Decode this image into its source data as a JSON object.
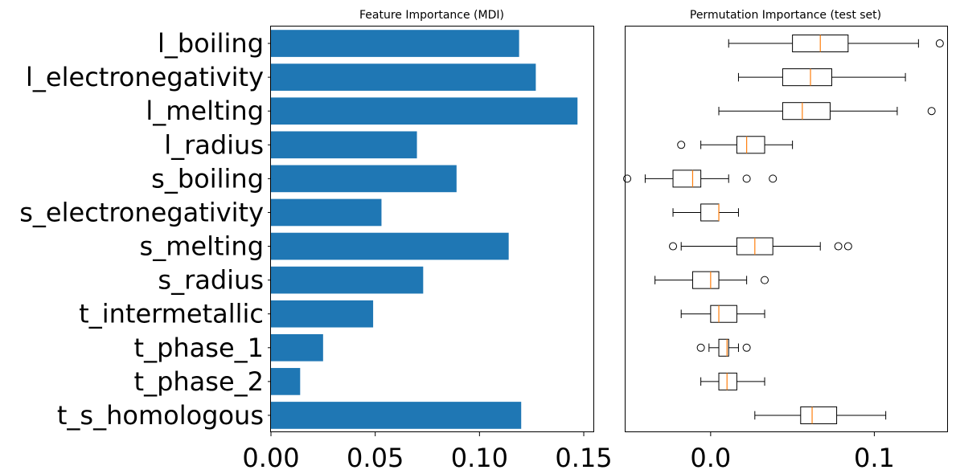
{
  "chart_data": [
    {
      "type": "bar",
      "orientation": "horizontal",
      "title": "Feature Importance (MDI)",
      "categories": [
        "l_boiling",
        "l_electronegativity",
        "l_melting",
        "l_radius",
        "s_boiling",
        "s_electronegativity",
        "s_melting",
        "s_radius",
        "t_intermetallic",
        "t_phase_1",
        "t_phase_2",
        "t_s_homologous"
      ],
      "values": [
        0.119,
        0.127,
        0.147,
        0.07,
        0.089,
        0.053,
        0.114,
        0.073,
        0.049,
        0.025,
        0.014,
        0.12
      ],
      "xlim": [
        0.0,
        0.155
      ],
      "xticks": [
        "0.00",
        "0.05",
        "0.10",
        "0.15"
      ],
      "xtick_values": [
        0.0,
        0.05,
        0.1,
        0.15
      ],
      "xlabel": "",
      "ylabel": "",
      "bar_color": "#1f77b4",
      "grid": false
    },
    {
      "type": "boxplot",
      "orientation": "horizontal",
      "title": "Permutation Importance (test set)",
      "xlim": [
        -0.052,
        0.145
      ],
      "xticks": [
        "0.0",
        "0.1"
      ],
      "xtick_values": [
        0.0,
        0.1
      ],
      "xlabel": "",
      "ylabel": "",
      "box_color": "#000000",
      "median_color": "#ff7f0e",
      "grid": false,
      "boxes": [
        {
          "whisker_low": 0.011,
          "q1": 0.05,
          "median": 0.067,
          "q3": 0.084,
          "whisker_high": 0.127,
          "fliers": [
            0.14
          ]
        },
        {
          "whisker_low": 0.017,
          "q1": 0.044,
          "median": 0.061,
          "q3": 0.074,
          "whisker_high": 0.119,
          "fliers": []
        },
        {
          "whisker_low": 0.005,
          "q1": 0.044,
          "median": 0.056,
          "q3": 0.073,
          "whisker_high": 0.114,
          "fliers": [
            0.135
          ]
        },
        {
          "whisker_low": -0.006,
          "q1": 0.016,
          "median": 0.022,
          "q3": 0.033,
          "whisker_high": 0.05,
          "fliers": [
            -0.018
          ]
        },
        {
          "whisker_low": -0.04,
          "q1": -0.023,
          "median": -0.011,
          "q3": -0.006,
          "whisker_high": 0.011,
          "fliers": [
            -0.051,
            0.022,
            0.038
          ]
        },
        {
          "whisker_low": -0.023,
          "q1": -0.006,
          "median": 0.005,
          "q3": 0.005,
          "whisker_high": 0.017,
          "fliers": []
        },
        {
          "whisker_low": -0.018,
          "q1": 0.016,
          "median": 0.027,
          "q3": 0.038,
          "whisker_high": 0.067,
          "fliers": [
            -0.023,
            0.078,
            0.084
          ]
        },
        {
          "whisker_low": -0.034,
          "q1": -0.011,
          "median": 0.0,
          "q3": 0.005,
          "whisker_high": 0.022,
          "fliers": [
            0.033
          ]
        },
        {
          "whisker_low": -0.018,
          "q1": 0.0,
          "median": 0.005,
          "q3": 0.016,
          "whisker_high": 0.033,
          "fliers": []
        },
        {
          "whisker_low": -0.001,
          "q1": 0.005,
          "median": 0.01,
          "q3": 0.011,
          "whisker_high": 0.017,
          "fliers": [
            -0.006,
            0.022
          ]
        },
        {
          "whisker_low": -0.006,
          "q1": 0.005,
          "median": 0.01,
          "q3": 0.016,
          "whisker_high": 0.033,
          "fliers": []
        },
        {
          "whisker_low": 0.027,
          "q1": 0.055,
          "median": 0.062,
          "q3": 0.077,
          "whisker_high": 0.107,
          "fliers": []
        }
      ]
    }
  ]
}
